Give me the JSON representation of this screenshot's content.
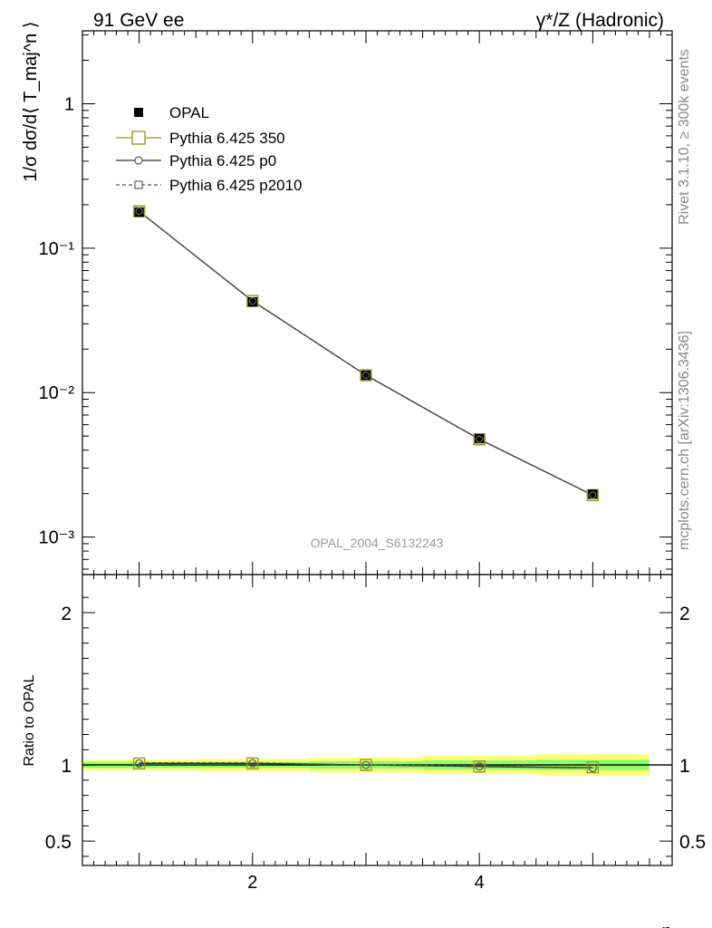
{
  "header": {
    "left": "91 GeV ee",
    "right": "γ*/Z (Hadronic)"
  },
  "side": {
    "rivet": "Rivet 3.1.10, ≥ 300k events",
    "mcplots": "mcplots.cern.ch [arXiv:1306.3436]"
  },
  "watermark": "OPAL_2004_S6132243",
  "colors": {
    "opal": "#000000",
    "p350": "#9a9a1e",
    "p0": "#333333",
    "p2010": "#555555",
    "band_inner": "#66ff66",
    "band_outer": "#ffff77"
  },
  "chart_data": [
    {
      "type": "line",
      "ylabel": "1/σ dσ/d⟨ T_maj^n ⟩",
      "yscale": "log",
      "xlim": [
        0.5,
        5.7
      ],
      "ylim": [
        0.00055,
        3.2
      ],
      "ytick_labels": {
        "1": "1",
        "0.1": "10⁻¹",
        "0.01": "10⁻²",
        "0.001": "10⁻³"
      },
      "x": [
        1,
        2,
        3,
        4,
        5
      ],
      "series": [
        {
          "name": "OPAL",
          "values": [
            0.178,
            0.0425,
            0.0132,
            0.0048,
            0.00198
          ]
        },
        {
          "name": "Pythia 6.425 350",
          "values": [
            0.18,
            0.0431,
            0.0132,
            0.00475,
            0.00195
          ]
        },
        {
          "name": "Pythia 6.425 p0",
          "values": [
            0.18,
            0.0431,
            0.0132,
            0.00476,
            0.00195
          ]
        },
        {
          "name": "Pythia 6.425 p2010",
          "values": [
            0.18,
            0.0431,
            0.0132,
            0.00476,
            0.00195
          ]
        }
      ]
    },
    {
      "type": "line",
      "xlabel": "n",
      "ylabel": "Ratio to OPAL",
      "xlim": [
        0.5,
        5.7
      ],
      "ylim": [
        0.34,
        2.25
      ],
      "xticks": [
        2,
        4
      ],
      "yticks": [
        0.5,
        1,
        2
      ],
      "x": [
        1,
        2,
        3,
        4,
        5
      ],
      "band_inner": [
        0.02,
        0.02,
        0.025,
        0.03,
        0.035
      ],
      "band_outer": [
        0.035,
        0.04,
        0.05,
        0.06,
        0.07
      ],
      "series": [
        {
          "name": "Pythia 6.425 350",
          "values": [
            1.01,
            1.01,
            1.0,
            0.99,
            0.985
          ]
        },
        {
          "name": "Pythia 6.425 p0",
          "values": [
            1.01,
            1.01,
            1.0,
            0.99,
            0.98
          ]
        },
        {
          "name": "Pythia 6.425 p2010",
          "values": [
            1.015,
            1.015,
            1.0,
            0.995,
            0.98
          ]
        }
      ]
    }
  ]
}
